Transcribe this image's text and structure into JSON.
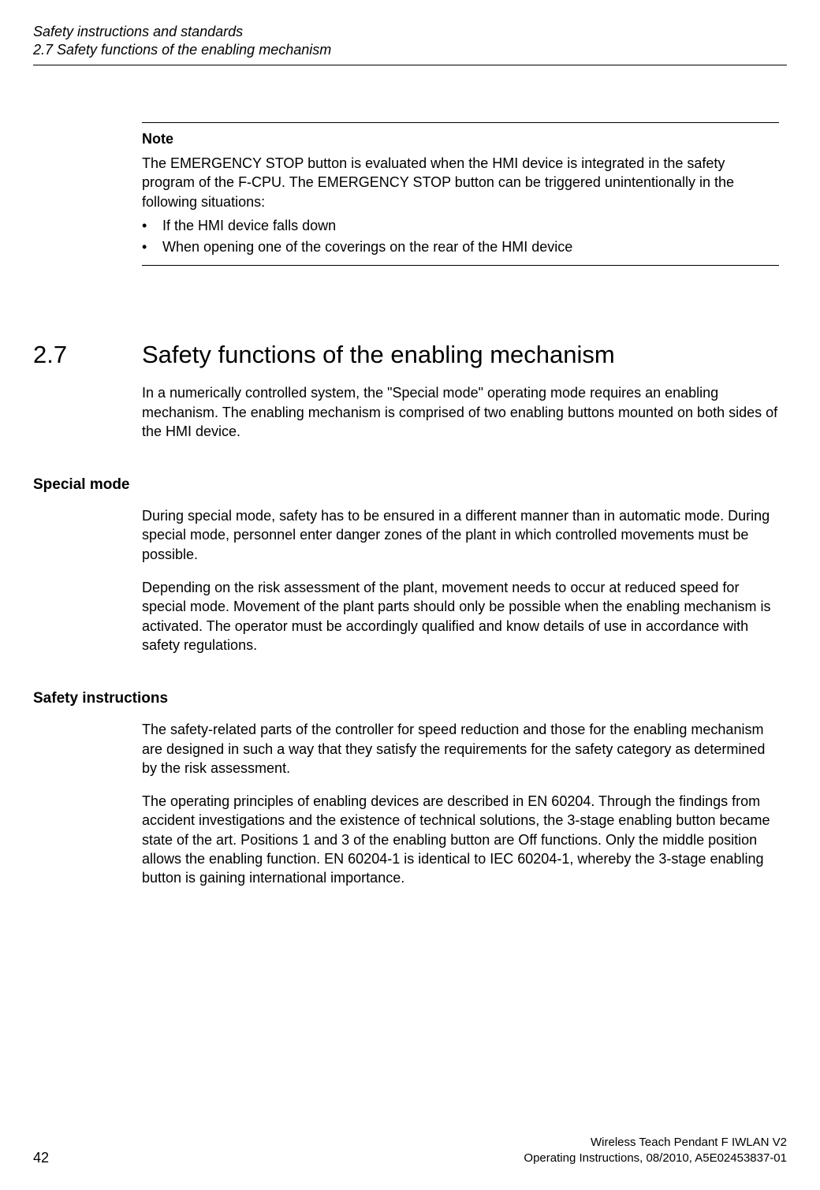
{
  "header": {
    "chapter": "Safety instructions and standards",
    "section": "2.7 Safety functions of the enabling mechanism"
  },
  "note": {
    "heading": "Note",
    "text": "The EMERGENCY STOP button is evaluated when the HMI device is integrated in the safety program of the F-CPU. The EMERGENCY STOP button can be triggered unintentionally in the following situations:",
    "bullets": [
      "If the HMI device falls down",
      "When opening one of the coverings on the rear of the HMI device"
    ]
  },
  "section": {
    "number": "2.7",
    "title": "Safety functions of the enabling mechanism",
    "intro": "In a numerically controlled system, the \"Special mode\" operating mode requires an enabling mechanism. The enabling mechanism is comprised of two enabling buttons mounted on both sides of the HMI device."
  },
  "special_mode": {
    "heading": "Special mode",
    "p1": "During special mode, safety has to be ensured in a different manner than in automatic mode. During special mode, personnel enter danger zones of the plant in which controlled movements must be possible.",
    "p2": "Depending on the risk assessment of the plant, movement needs to occur at reduced speed for special mode. Movement of the plant parts should only be possible when the enabling mechanism is activated. The operator must be accordingly qualified and know details of use in accordance with safety regulations."
  },
  "safety_instructions": {
    "heading": "Safety instructions",
    "p1": "The safety-related parts of the controller for speed reduction and those for the enabling mechanism are designed in such a way that they satisfy the requirements for the safety category as determined by the risk assessment.",
    "p2": "The operating principles of enabling devices are described in EN 60204. Through the findings from accident investigations and the existence of technical solutions, the 3-stage enabling button became state of the art. Positions 1 and 3 of the enabling button are Off functions. Only the middle position allows the enabling function. EN 60204-1 is identical to IEC 60204-1, whereby the 3-stage enabling button is gaining international importance."
  },
  "footer": {
    "right_line1": "Wireless Teach Pendant F IWLAN V2",
    "right_line2": "Operating Instructions, 08/2010, A5E02453837-01",
    "page_number": "42"
  }
}
